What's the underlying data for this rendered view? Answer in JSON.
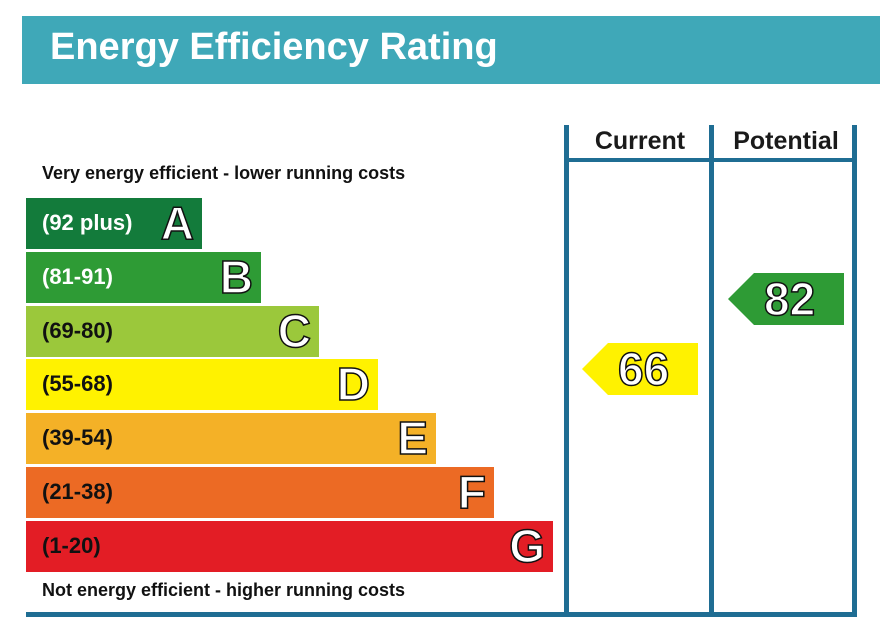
{
  "chart_data": {
    "type": "bar",
    "title": "Energy Efficiency Rating",
    "columns": [
      "Current",
      "Potential"
    ],
    "top_note": "Very energy efficient - lower running costs",
    "bottom_note": "Not energy efficient - higher running costs",
    "bands": [
      {
        "letter": "A",
        "range": "(92 plus)",
        "color": "#137b3b",
        "text_dark": false
      },
      {
        "letter": "B",
        "range": "(81-91)",
        "color": "#2e9b35",
        "text_dark": false
      },
      {
        "letter": "C",
        "range": "(69-80)",
        "color": "#9bc83b",
        "text_dark": true
      },
      {
        "letter": "D",
        "range": "(55-68)",
        "color": "#fff200",
        "text_dark": true
      },
      {
        "letter": "E",
        "range": "(39-54)",
        "color": "#f4b127",
        "text_dark": true
      },
      {
        "letter": "F",
        "range": "(21-38)",
        "color": "#ec6a24",
        "text_dark": true
      },
      {
        "letter": "G",
        "range": "(1-20)",
        "color": "#e31d25",
        "text_dark": true
      }
    ],
    "current": {
      "value": "66",
      "band": "D",
      "color": "#fff200"
    },
    "potential": {
      "value": "82",
      "band": "B",
      "color": "#2e9b35"
    }
  },
  "colors": {
    "header_bg": "#3fa8b8",
    "frame": "#1f6d93"
  }
}
